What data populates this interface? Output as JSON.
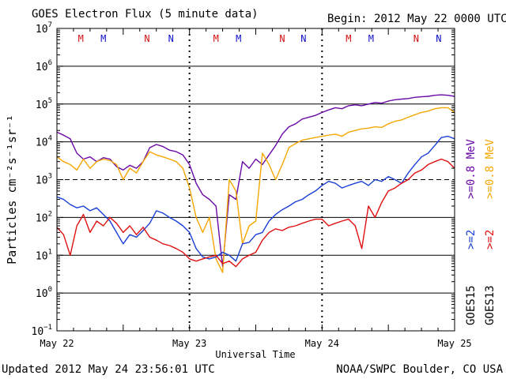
{
  "header": {
    "title": "GOES Electron Flux (5 minute data)",
    "begin": "Begin: 2012 May 22 0000 UTC"
  },
  "footer": {
    "updated": "Updated 2012 May 24 23:56:01 UTC",
    "source": "NOAA/SWPC Boulder, CO USA"
  },
  "legend_labels": {
    "g15_08": ">=0.8 MeV",
    "g15_2": ">=2",
    "g15_name": "GOES15",
    "g13_08": ">=0.8 MeV",
    "g13_2": ">=2",
    "g13_name": "GOES13"
  },
  "colors": {
    "g15_08": "#6a0aa8",
    "g15_2": "#1a3fd6",
    "g13_08": "#f5a700",
    "g13_2": "#e01010",
    "marker_m": "#d01010",
    "marker_n": "#1010c8"
  },
  "markers": [
    {
      "day": 0.18,
      "label": "M",
      "color": "#d01010"
    },
    {
      "day": 0.35,
      "label": "M",
      "color": "#1010c8"
    },
    {
      "day": 0.68,
      "label": "N",
      "color": "#d01010"
    },
    {
      "day": 0.86,
      "label": "N",
      "color": "#1010c8"
    },
    {
      "day": 1.2,
      "label": "M",
      "color": "#d01010"
    },
    {
      "day": 1.37,
      "label": "M",
      "color": "#1010c8"
    },
    {
      "day": 1.7,
      "label": "N",
      "color": "#d01010"
    },
    {
      "day": 1.86,
      "label": "N",
      "color": "#1010c8"
    },
    {
      "day": 2.2,
      "label": "M",
      "color": "#d01010"
    },
    {
      "day": 2.37,
      "label": "M",
      "color": "#1010c8"
    },
    {
      "day": 2.71,
      "label": "N",
      "color": "#d01010"
    },
    {
      "day": 2.88,
      "label": "N",
      "color": "#1010c8"
    }
  ],
  "chart_data": {
    "type": "line",
    "ylabel": "Particles cm⁻²s⁻¹sr⁻¹",
    "xlabel": "Universal Time",
    "x_ticks": [
      "May 22",
      "May 23",
      "May 24",
      "May 25"
    ],
    "y_tick_exponents": [
      -1,
      0,
      1,
      2,
      3,
      4,
      5,
      6,
      7
    ],
    "y_scale": "log",
    "ylim": [
      0.1,
      10000000
    ],
    "xlim_days": [
      0,
      3
    ],
    "threshold_line": 1000,
    "series": [
      {
        "name": "GOES15 >=0.8 MeV",
        "color": "#6a0aa8",
        "x": [
          0,
          0.05,
          0.1,
          0.15,
          0.2,
          0.25,
          0.3,
          0.35,
          0.4,
          0.45,
          0.5,
          0.55,
          0.6,
          0.65,
          0.7,
          0.75,
          0.8,
          0.85,
          0.9,
          0.95,
          1.0,
          1.05,
          1.1,
          1.15,
          1.2,
          1.25,
          1.3,
          1.35,
          1.4,
          1.45,
          1.5,
          1.55,
          1.6,
          1.65,
          1.7,
          1.75,
          1.8,
          1.85,
          1.9,
          1.95,
          2.0,
          2.05,
          2.1,
          2.15,
          2.2,
          2.25,
          2.3,
          2.35,
          2.4,
          2.45,
          2.5,
          2.55,
          2.6,
          2.65,
          2.7,
          2.75,
          2.8,
          2.85,
          2.9,
          2.95,
          3.0
        ],
        "y": [
          18000,
          15000,
          12000,
          5000,
          3500,
          4000,
          3000,
          3800,
          3500,
          2200,
          1800,
          2400,
          2000,
          3000,
          7000,
          8500,
          7500,
          6000,
          5500,
          4500,
          2500,
          800,
          400,
          300,
          200,
          5,
          400,
          300,
          3000,
          2000,
          3500,
          2500,
          4500,
          8000,
          16000,
          25000,
          30000,
          40000,
          45000,
          50000,
          60000,
          70000,
          80000,
          75000,
          90000,
          95000,
          90000,
          100000,
          110000,
          105000,
          120000,
          130000,
          135000,
          140000,
          150000,
          155000,
          160000,
          170000,
          175000,
          170000,
          160000
        ]
      },
      {
        "name": "GOES13 >=0.8 MeV",
        "color": "#f5a700",
        "x": [
          0,
          0.05,
          0.1,
          0.15,
          0.2,
          0.25,
          0.3,
          0.35,
          0.4,
          0.45,
          0.5,
          0.55,
          0.6,
          0.65,
          0.7,
          0.75,
          0.8,
          0.85,
          0.9,
          0.95,
          1.0,
          1.05,
          1.1,
          1.15,
          1.2,
          1.25,
          1.3,
          1.35,
          1.4,
          1.45,
          1.5,
          1.55,
          1.6,
          1.65,
          1.7,
          1.75,
          1.8,
          1.85,
          1.9,
          1.95,
          2.0,
          2.05,
          2.1,
          2.15,
          2.2,
          2.25,
          2.3,
          2.35,
          2.4,
          2.45,
          2.5,
          2.55,
          2.6,
          2.65,
          2.7,
          2.75,
          2.8,
          2.85,
          2.9,
          2.95,
          3.0
        ],
        "y": [
          4000,
          3000,
          2500,
          1800,
          3500,
          2000,
          3000,
          3500,
          3200,
          2500,
          1000,
          2000,
          1500,
          3000,
          5500,
          4500,
          4000,
          3500,
          3000,
          2000,
          600,
          100,
          40,
          100,
          8,
          3.5,
          1000,
          500,
          20,
          60,
          80,
          5000,
          2500,
          1000,
          2500,
          7000,
          9000,
          11000,
          12000,
          13000,
          14000,
          15000,
          16000,
          14000,
          18000,
          20000,
          22000,
          23000,
          25000,
          24000,
          30000,
          35000,
          38000,
          45000,
          52000,
          60000,
          65000,
          75000,
          80000,
          80000,
          60000
        ]
      },
      {
        "name": "GOES15 >=2",
        "color": "#1a3fd6",
        "x": [
          0,
          0.05,
          0.1,
          0.15,
          0.2,
          0.25,
          0.3,
          0.35,
          0.4,
          0.45,
          0.5,
          0.55,
          0.6,
          0.65,
          0.7,
          0.75,
          0.8,
          0.85,
          0.9,
          0.95,
          1.0,
          1.05,
          1.1,
          1.15,
          1.2,
          1.25,
          1.3,
          1.35,
          1.4,
          1.45,
          1.5,
          1.55,
          1.6,
          1.65,
          1.7,
          1.75,
          1.8,
          1.85,
          1.9,
          1.95,
          2.0,
          2.05,
          2.1,
          2.15,
          2.2,
          2.25,
          2.3,
          2.35,
          2.4,
          2.45,
          2.5,
          2.55,
          2.6,
          2.65,
          2.7,
          2.75,
          2.8,
          2.85,
          2.9,
          2.95,
          3.0
        ],
        "y": [
          350,
          300,
          220,
          180,
          200,
          150,
          180,
          120,
          80,
          40,
          20,
          35,
          30,
          45,
          70,
          150,
          130,
          100,
          80,
          60,
          40,
          15,
          9,
          8,
          9,
          12,
          10,
          7,
          20,
          22,
          35,
          40,
          80,
          120,
          160,
          200,
          260,
          300,
          400,
          500,
          700,
          900,
          800,
          600,
          700,
          800,
          900,
          700,
          1000,
          900,
          1200,
          1000,
          800,
          1500,
          2500,
          4000,
          5000,
          8000,
          13000,
          14000,
          12000
        ]
      },
      {
        "name": "GOES13 >=2",
        "color": "#e01010",
        "x": [
          0,
          0.05,
          0.1,
          0.15,
          0.2,
          0.25,
          0.3,
          0.35,
          0.4,
          0.45,
          0.5,
          0.55,
          0.6,
          0.65,
          0.7,
          0.75,
          0.8,
          0.85,
          0.9,
          0.95,
          1.0,
          1.05,
          1.1,
          1.15,
          1.2,
          1.25,
          1.3,
          1.35,
          1.4,
          1.45,
          1.5,
          1.55,
          1.6,
          1.65,
          1.7,
          1.75,
          1.8,
          1.85,
          1.9,
          1.95,
          2.0,
          2.05,
          2.1,
          2.15,
          2.2,
          2.25,
          2.3,
          2.35,
          2.4,
          2.45,
          2.5,
          2.55,
          2.6,
          2.65,
          2.7,
          2.75,
          2.8,
          2.85,
          2.9,
          2.95,
          3.0
        ],
        "y": [
          55,
          35,
          10,
          60,
          120,
          40,
          80,
          60,
          100,
          70,
          40,
          60,
          35,
          55,
          30,
          25,
          20,
          18,
          15,
          12,
          8,
          7,
          8,
          9,
          10,
          6,
          7,
          5,
          8,
          10,
          12,
          25,
          40,
          50,
          45,
          55,
          60,
          70,
          80,
          90,
          90,
          60,
          70,
          80,
          90,
          60,
          15,
          200,
          100,
          250,
          500,
          600,
          800,
          1000,
          1500,
          1800,
          2500,
          3000,
          3500,
          3000,
          2000
        ]
      }
    ]
  }
}
